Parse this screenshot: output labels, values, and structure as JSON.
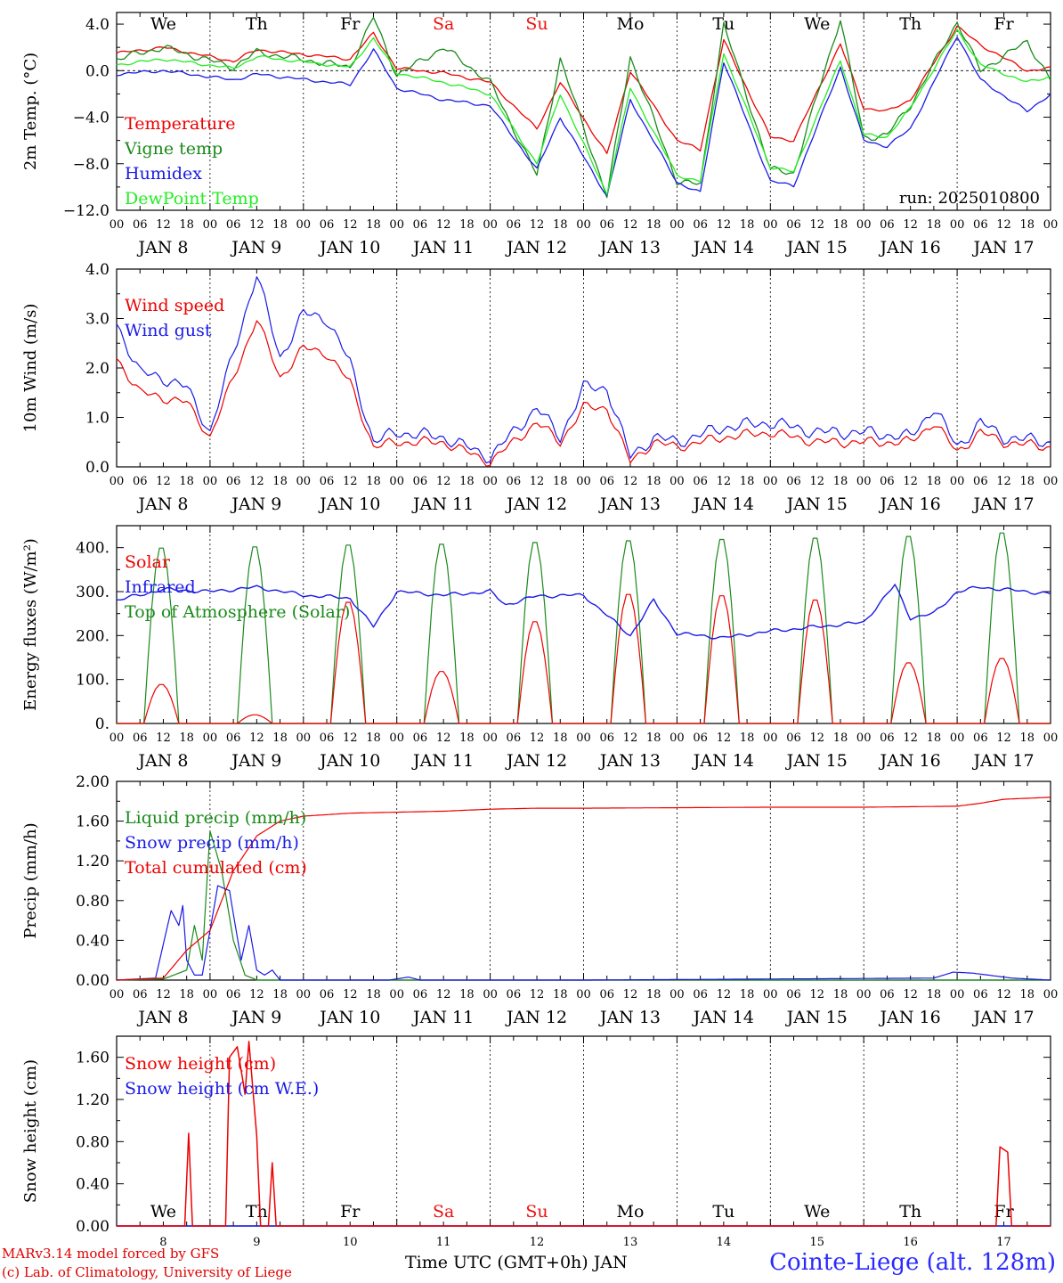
{
  "colors": {
    "red": "#ee0000",
    "dgreen": "#1a8a1a",
    "lgreen": "#22ee22",
    "blue": "#1a1ae8",
    "weekend": "#ee1111",
    "axis": "#000000"
  },
  "days": {
    "weekdays": [
      "We",
      "Th",
      "Fr",
      "Sa",
      "Su",
      "Mo",
      "Tu",
      "We",
      "Th",
      "Fr"
    ],
    "weekend_index": [
      3,
      4
    ],
    "date_labels": [
      "JAN  8",
      "JAN  9",
      "JAN 10",
      "JAN 11",
      "JAN 12",
      "JAN 13",
      "JAN 14",
      "JAN 15",
      "JAN 16",
      "JAN 17"
    ],
    "hour_ticks": [
      "00",
      "06",
      "12",
      "18"
    ],
    "bottom_dates": [
      "8",
      "9",
      "10",
      "11",
      "12",
      "13",
      "14",
      "15",
      "16",
      "17"
    ]
  },
  "footer": {
    "credit_line1": "MARv3.14 model forced by GFS",
    "credit_line2": "(c) Lab. of Climatology, University of Liege",
    "time_axis_label": "Time UTC (GMT+0h) JAN",
    "station": "Cointe-Liege (alt. 128m)"
  },
  "chart_data": [
    {
      "type": "line",
      "ylabel": "2m Temp. (°C)",
      "ylim": [
        -12,
        5
      ],
      "yticks": [
        "4.0",
        "0.0",
        "−4.0",
        "−8.0",
        "−12.0"
      ],
      "ytick_values": [
        4,
        0,
        -4,
        -8,
        -12
      ],
      "zero_line": true,
      "annotation": "run: 2025010800",
      "x_hours": [
        0,
        12,
        30,
        36,
        60,
        66,
        72,
        84,
        96,
        108,
        114,
        126,
        132,
        144,
        150,
        156,
        168,
        174,
        186,
        192,
        198,
        204,
        216,
        222,
        234,
        240
      ],
      "series": [
        {
          "name": "Temperature",
          "color": "red",
          "values": [
            1.5,
            2.0,
            0.8,
            1.8,
            1.0,
            3.2,
            0.2,
            -0.2,
            -1.0,
            -5.0,
            -1.0,
            -7.2,
            0.0,
            -6.0,
            -6.8,
            2.6,
            -5.7,
            -6.0,
            2.3,
            -3.2,
            -3.5,
            -2.5,
            3.8,
            2.2,
            0.0,
            0.2
          ]
        },
        {
          "name": "Vigne temp",
          "color": "dgreen",
          "values": [
            1.0,
            2.0,
            0.3,
            1.6,
            0.3,
            4.6,
            -0.4,
            2.0,
            -1.0,
            -9.0,
            1.0,
            -10.8,
            1.2,
            -9.5,
            -9.8,
            4.0,
            -8.5,
            -8.8,
            4.5,
            -5.8,
            -5.5,
            -3.0,
            4.2,
            0.0,
            2.5,
            -0.8
          ]
        },
        {
          "name": "Humidex",
          "color": "blue",
          "values": [
            -0.3,
            0.0,
            -0.8,
            -0.3,
            -1.2,
            1.8,
            -1.5,
            -2.5,
            -3.0,
            -8.5,
            -4.0,
            -10.8,
            -2.5,
            -9.6,
            -10.5,
            0.8,
            -9.5,
            -9.9,
            0.3,
            -6.0,
            -6.5,
            -5.0,
            3.0,
            -0.8,
            -3.5,
            -2.0
          ]
        },
        {
          "name": "DewPoint Temp",
          "color": "lgreen",
          "values": [
            0.5,
            1.0,
            0.2,
            1.2,
            0.3,
            2.8,
            -0.2,
            -1.0,
            -2.0,
            -8.0,
            -2.0,
            -10.6,
            -1.5,
            -9.0,
            -9.5,
            1.5,
            -8.3,
            -8.7,
            0.9,
            -5.5,
            -5.7,
            -3.2,
            3.5,
            0.5,
            -1.0,
            -0.5
          ]
        }
      ]
    },
    {
      "type": "line",
      "ylabel": "10m Wind (m/s)",
      "ylim": [
        0,
        4
      ],
      "yticks": [
        "4.0",
        "3.0",
        "2.0",
        "1.0",
        "0.0"
      ],
      "ytick_values": [
        4,
        3,
        2,
        1,
        0
      ],
      "x_hours": [
        0,
        6,
        12,
        18,
        24,
        36,
        42,
        48,
        54,
        60,
        66,
        72,
        84,
        96,
        108,
        114,
        120,
        126,
        132,
        138,
        144,
        156,
        168,
        180,
        192,
        204,
        210,
        216,
        222,
        228,
        240
      ],
      "series": [
        {
          "name": "Wind speed",
          "color": "red",
          "values": [
            2.2,
            1.5,
            1.4,
            1.3,
            0.6,
            3.0,
            1.8,
            2.4,
            2.3,
            1.7,
            0.4,
            0.5,
            0.5,
            0.1,
            0.9,
            0.5,
            1.2,
            1.2,
            0.1,
            0.5,
            0.4,
            0.6,
            0.7,
            0.5,
            0.5,
            0.5,
            0.9,
            0.3,
            0.7,
            0.5,
            0.4
          ]
        },
        {
          "name": "Wind gust",
          "color": "blue",
          "values": [
            2.9,
            1.9,
            1.8,
            1.6,
            0.7,
            3.9,
            2.2,
            3.1,
            3.0,
            2.1,
            0.5,
            0.7,
            0.6,
            0.2,
            1.2,
            0.6,
            1.6,
            1.6,
            0.2,
            0.6,
            0.5,
            0.8,
            0.9,
            0.7,
            0.7,
            0.6,
            1.2,
            0.4,
            0.9,
            0.6,
            0.5
          ]
        }
      ]
    },
    {
      "type": "line",
      "ylabel": "Energy fluxes (W/m²)",
      "ylim": [
        0,
        450
      ],
      "yticks": [
        "400.",
        "300.",
        "200.",
        "100.",
        "0."
      ],
      "ytick_values": [
        400,
        300,
        200,
        100,
        0
      ],
      "daylight": {
        "rise_hour": 7,
        "noon_hour": 12,
        "set_hour": 16
      },
      "series": [
        {
          "name": "Solar",
          "color": "red",
          "daily_peaks": [
            90,
            20,
            280,
            120,
            235,
            298,
            295,
            285,
            140,
            150
          ]
        },
        {
          "name": "Infrared",
          "color": "blue",
          "x_hours": [
            0,
            12,
            24,
            36,
            48,
            60,
            66,
            72,
            84,
            96,
            100,
            108,
            120,
            132,
            138,
            144,
            156,
            168,
            180,
            192,
            200,
            204,
            210,
            216,
            222,
            228,
            234,
            240
          ],
          "values": [
            280,
            305,
            300,
            310,
            292,
            285,
            220,
            300,
            292,
            300,
            270,
            290,
            292,
            200,
            280,
            205,
            195,
            210,
            220,
            230,
            315,
            240,
            250,
            300,
            310,
            305,
            300,
            295
          ]
        },
        {
          "name": "Top of Atmosphere (Solar)",
          "color": "dgreen",
          "daily_peaks": [
            405,
            408,
            412,
            414,
            418,
            422,
            425,
            428,
            432,
            440
          ]
        }
      ]
    },
    {
      "type": "line",
      "ylabel": "Precip (mm/h)",
      "ylim": [
        0,
        2
      ],
      "yticks": [
        "2.00",
        "1.60",
        "1.20",
        "0.80",
        "0.40",
        "0.00"
      ],
      "ytick_values": [
        2.0,
        1.6,
        1.2,
        0.8,
        0.4,
        0.0
      ],
      "series": [
        {
          "name": "Liquid precip (mm/h)",
          "color": "dgreen",
          "x_hours": [
            0,
            12,
            18,
            20,
            22,
            24,
            27,
            30,
            33,
            36,
            72,
            240
          ],
          "values": [
            0,
            0.01,
            0.1,
            0.55,
            0.2,
            1.5,
            1.1,
            0.4,
            0.05,
            0,
            0,
            0
          ]
        },
        {
          "name": "Snow precip (mm/h)",
          "color": "blue",
          "x_hours": [
            0,
            10,
            14,
            16,
            17,
            18,
            20,
            22,
            26,
            29,
            32,
            34,
            36,
            38,
            40,
            42,
            48,
            70,
            75,
            78,
            110,
            120,
            210,
            215,
            220,
            230,
            240
          ],
          "values": [
            0,
            0.02,
            0.7,
            0.55,
            0.75,
            0.2,
            0.05,
            0.05,
            0.95,
            0.9,
            0.2,
            0.55,
            0.1,
            0.05,
            0.1,
            0,
            0,
            0,
            0.03,
            0,
            0,
            0,
            0.02,
            0.08,
            0.07,
            0.02,
            0
          ]
        },
        {
          "name": "Total cumulated (cm)",
          "color": "red",
          "x_hours": [
            0,
            12,
            18,
            24,
            30,
            36,
            42,
            48,
            60,
            72,
            84,
            96,
            108,
            120,
            144,
            168,
            192,
            216,
            222,
            228,
            240
          ],
          "values": [
            0,
            0.02,
            0.3,
            0.5,
            1.1,
            1.45,
            1.6,
            1.65,
            1.68,
            1.69,
            1.7,
            1.72,
            1.73,
            1.73,
            1.735,
            1.74,
            1.74,
            1.75,
            1.78,
            1.82,
            1.84
          ]
        }
      ]
    },
    {
      "type": "line",
      "ylabel": "Snow height (cm)",
      "ylim": [
        0,
        1.8
      ],
      "yticks": [
        "1.60",
        "1.20",
        "0.80",
        "0.40",
        "0.00"
      ],
      "ytick_values": [
        1.6,
        1.2,
        0.8,
        0.4,
        0.0
      ],
      "series": [
        {
          "name": "Snow height (cm)",
          "color": "red",
          "x_hours": [
            0,
            17.5,
            18.5,
            19.5,
            28,
            29,
            31,
            33,
            34,
            35,
            36,
            37,
            39,
            40,
            41,
            42,
            226,
            227,
            229,
            230,
            240
          ],
          "values": [
            0,
            0,
            0.88,
            0,
            0,
            1.6,
            1.7,
            1.25,
            1.75,
            1.3,
            0.85,
            0,
            0,
            0.6,
            0,
            0,
            0,
            0.75,
            0.7,
            0,
            0
          ]
        },
        {
          "name": "Snow height (cm W.E.)",
          "color": "blue",
          "x_hours": [
            0,
            240
          ],
          "values": [
            0,
            0
          ]
        }
      ]
    }
  ]
}
